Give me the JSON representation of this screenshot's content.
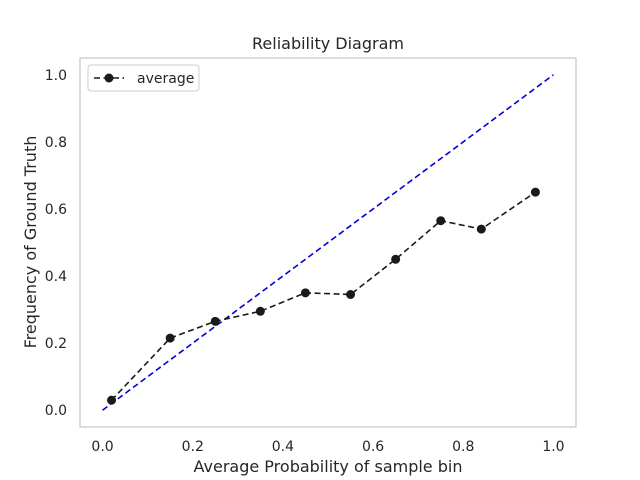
{
  "chart_data": {
    "type": "line",
    "title": "Reliability Diagram",
    "xlabel": "Average Probability of sample bin",
    "ylabel": "Frequency of Ground Truth",
    "xlim": [
      -0.05,
      1.05
    ],
    "ylim": [
      -0.05,
      1.05
    ],
    "xticks": [
      0.0,
      0.2,
      0.4,
      0.6,
      0.8,
      1.0
    ],
    "yticks": [
      0.0,
      0.2,
      0.4,
      0.6,
      0.8,
      1.0
    ],
    "xtick_labels": [
      "0.0",
      "0.2",
      "0.4",
      "0.6",
      "0.8",
      "1.0"
    ],
    "ytick_labels": [
      "0.0",
      "0.2",
      "0.4",
      "0.6",
      "0.8",
      "1.0"
    ],
    "grid": false,
    "legend_position": "top-left",
    "series": [
      {
        "name": "average",
        "style": "dashed",
        "marker": "circle",
        "color": "#1a1a1a",
        "x": [
          0.02,
          0.15,
          0.25,
          0.35,
          0.45,
          0.55,
          0.65,
          0.75,
          0.84,
          0.96
        ],
        "y": [
          0.03,
          0.215,
          0.265,
          0.295,
          0.35,
          0.345,
          0.45,
          0.565,
          0.54,
          0.65
        ]
      }
    ],
    "reference_line": {
      "style": "dashed",
      "color": "#0000dd",
      "x": [
        0.0,
        1.0
      ],
      "y": [
        0.0,
        1.0
      ]
    },
    "frame_color": "#cccccc"
  }
}
